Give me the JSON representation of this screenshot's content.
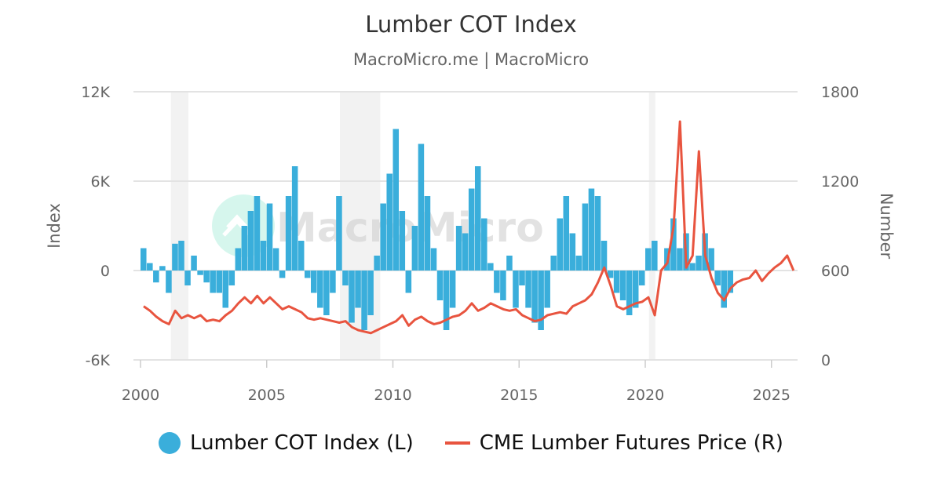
{
  "chart_data": {
    "type": "bar+line",
    "title": "Lumber COT Index",
    "subtitle": "MacroMicro.me | MacroMicro",
    "watermark": "MacroMicro",
    "y_left": {
      "label": "Index",
      "range": [
        -6000,
        12000
      ],
      "ticks": [
        -6000,
        0,
        6000,
        12000
      ],
      "tick_labels": [
        "-6K",
        "0",
        "6K",
        "12K"
      ]
    },
    "y_right": {
      "label": "Number",
      "range": [
        0,
        1800
      ],
      "ticks": [
        0,
        600,
        1200,
        1800
      ],
      "tick_labels": [
        "0",
        "600",
        "1200",
        "1800"
      ]
    },
    "x": {
      "range": [
        2000,
        2025.9
      ],
      "ticks": [
        2000,
        2005,
        2010,
        2015,
        2020,
        2025
      ],
      "tick_labels": [
        "2000",
        "2005",
        "2010",
        "2015",
        "2020",
        "2025"
      ]
    },
    "grid": true,
    "legend_position": "bottom",
    "recessions": [
      [
        2001.2,
        2001.9
      ],
      [
        2007.9,
        2009.5
      ],
      [
        2020.15,
        2020.4
      ]
    ],
    "x_start": 2000,
    "x_step": 0.25,
    "series": [
      {
        "name": "Lumber COT Index (L)",
        "type": "bar",
        "axis": "left",
        "color": "#3aaedb",
        "values": [
          1500,
          500,
          -800,
          300,
          -1500,
          1800,
          2000,
          -1000,
          1000,
          -300,
          -800,
          -1500,
          -1500,
          -2500,
          -1000,
          1500,
          3000,
          4000,
          5000,
          2000,
          4500,
          1500,
          -500,
          5000,
          7000,
          2000,
          -500,
          -1500,
          -2500,
          -3000,
          -1500,
          5000,
          -1000,
          -3500,
          -2500,
          -4000,
          -3000,
          1000,
          4500,
          6500,
          9500,
          4000,
          -1500,
          3000,
          8500,
          5000,
          1500,
          -2000,
          -4000,
          -2500,
          3000,
          2500,
          5500,
          7000,
          3500,
          500,
          -1500,
          -2000,
          1000,
          -2500,
          -1000,
          -2500,
          -3500,
          -4000,
          -2500,
          1000,
          3500,
          5000,
          2500,
          1000,
          4500,
          5500,
          5000,
          2000,
          -500,
          -1500,
          -2000,
          -3000,
          -2500,
          -1000,
          1500,
          2000,
          0,
          1500,
          3500,
          1500,
          2500,
          500,
          1000,
          2500,
          1500,
          -1000,
          -2500,
          -1500,
          0,
          0,
          0,
          0,
          0,
          0,
          0,
          0,
          0,
          0
        ]
      },
      {
        "name": "CME Lumber Futures Price (R)",
        "type": "line",
        "axis": "right",
        "color": "#e8543f",
        "values": [
          360,
          330,
          290,
          260,
          240,
          330,
          280,
          300,
          280,
          300,
          260,
          270,
          260,
          300,
          330,
          380,
          420,
          380,
          430,
          380,
          420,
          380,
          340,
          360,
          340,
          320,
          280,
          270,
          280,
          270,
          260,
          250,
          260,
          220,
          200,
          190,
          180,
          200,
          220,
          240,
          260,
          300,
          230,
          270,
          290,
          260,
          240,
          250,
          270,
          290,
          300,
          330,
          380,
          330,
          350,
          380,
          360,
          340,
          330,
          340,
          300,
          280,
          260,
          270,
          300,
          310,
          320,
          310,
          360,
          380,
          400,
          440,
          520,
          620,
          500,
          360,
          340,
          360,
          380,
          390,
          420,
          300,
          600,
          650,
          900,
          1600,
          620,
          700,
          1400,
          700,
          550,
          450,
          400,
          480,
          520,
          540,
          550,
          600,
          530,
          580,
          620,
          650,
          700,
          600
        ]
      }
    ]
  }
}
